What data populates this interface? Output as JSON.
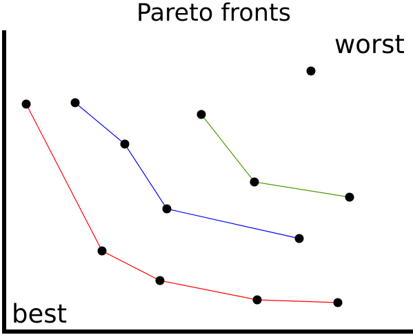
{
  "diagram": {
    "title": "Pareto fronts",
    "label_worst": "worst",
    "label_best": "best"
  },
  "chart_data": {
    "type": "scatter",
    "title": "Pareto fronts",
    "xlabel": "",
    "ylabel": "",
    "axis_color": "#000000",
    "point_color": "#000000",
    "annotations": [
      "worst",
      "best"
    ],
    "series": [
      {
        "color": "#ff0000",
        "connected": true,
        "points": [
          [
            38,
            151
          ],
          [
            148,
            364
          ],
          [
            232,
            407
          ],
          [
            373,
            435
          ],
          [
            490,
            439
          ]
        ]
      },
      {
        "color": "#0000ff",
        "connected": true,
        "points": [
          [
            109,
            149
          ],
          [
            181,
            209
          ],
          [
            242,
            303
          ],
          [
            434,
            346
          ]
        ]
      },
      {
        "color": "#4a9a00",
        "connected": true,
        "points": [
          [
            292,
            166
          ],
          [
            369,
            264
          ],
          [
            507,
            286
          ]
        ]
      },
      {
        "color": "#000000",
        "connected": false,
        "points": [
          [
            451,
            103
          ]
        ]
      }
    ]
  }
}
